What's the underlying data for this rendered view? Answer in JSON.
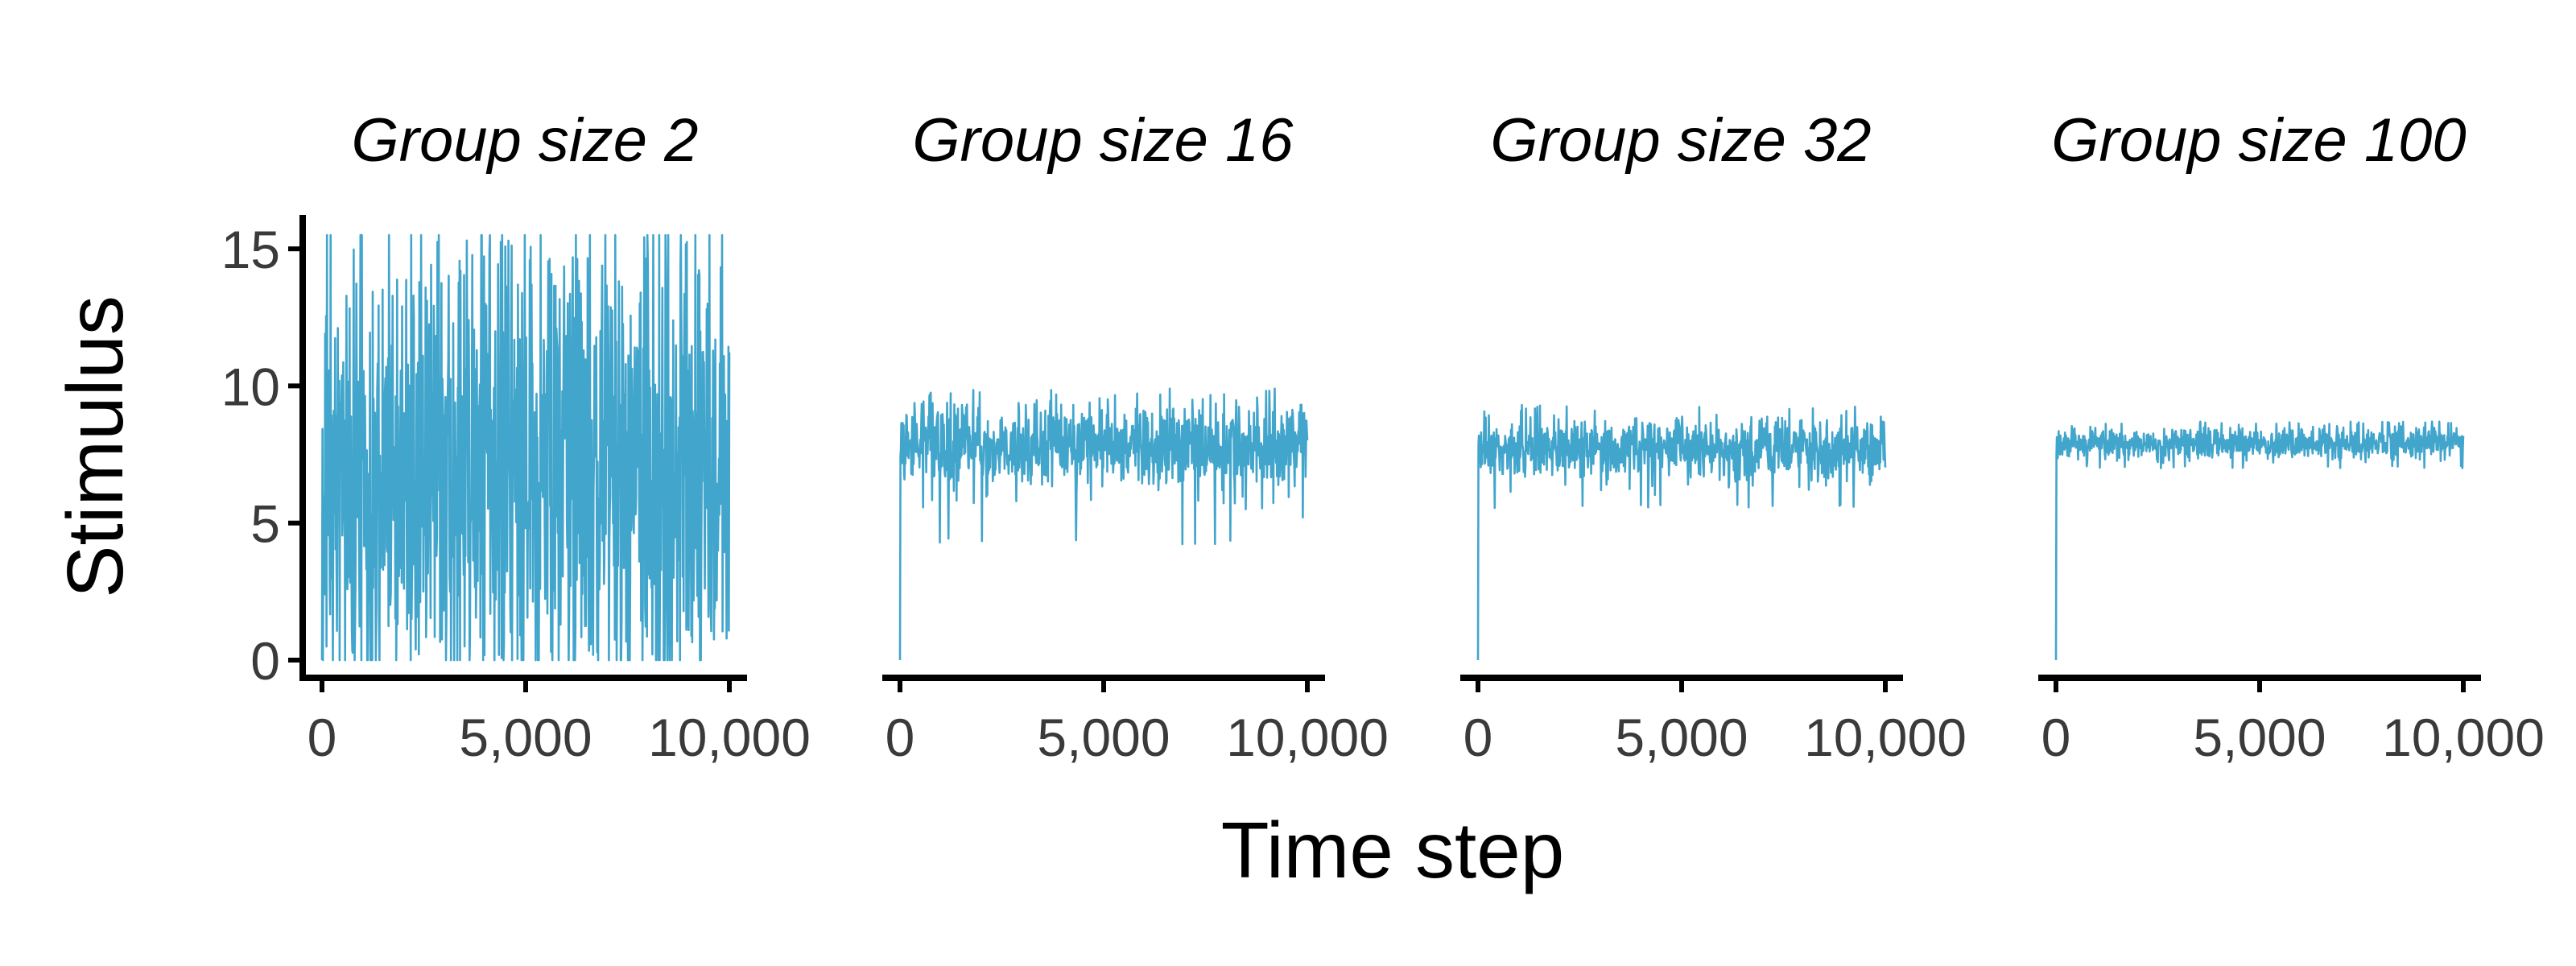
{
  "chart_data": {
    "type": "line",
    "facet_layout": "1x4",
    "shared_y_axis": true,
    "grid": false,
    "legend": "none",
    "xlabel": "Time step",
    "ylabel": "Stimulus",
    "xlim": [
      0,
      10000
    ],
    "ylim": [
      0,
      16
    ],
    "x_ticks": [
      0,
      5000,
      10000
    ],
    "x_tick_labels": [
      "0",
      "5,000",
      "10,000"
    ],
    "y_ticks": [
      0,
      5,
      10,
      15
    ],
    "y_tick_labels": [
      "0",
      "5",
      "10",
      "15"
    ],
    "line_color": "#42A5CC",
    "panels": [
      {
        "title": "Group size 2",
        "initial_value": 0,
        "mean": 7.0,
        "noise_low": 0.0,
        "noise_high": 15.5,
        "typical_amplitude": 4.5
      },
      {
        "title": "Group size 16",
        "initial_value": 0,
        "mean": 7.8,
        "noise_low": 4.2,
        "noise_high": 9.9,
        "typical_amplitude": 0.8
      },
      {
        "title": "Group size 32",
        "initial_value": 0,
        "mean": 7.7,
        "noise_low": 5.5,
        "noise_high": 9.3,
        "typical_amplitude": 0.55
      },
      {
        "title": "Group size 100",
        "initial_value": 0,
        "mean": 7.9,
        "noise_low": 7.0,
        "noise_high": 8.7,
        "typical_amplitude": 0.3
      }
    ]
  }
}
